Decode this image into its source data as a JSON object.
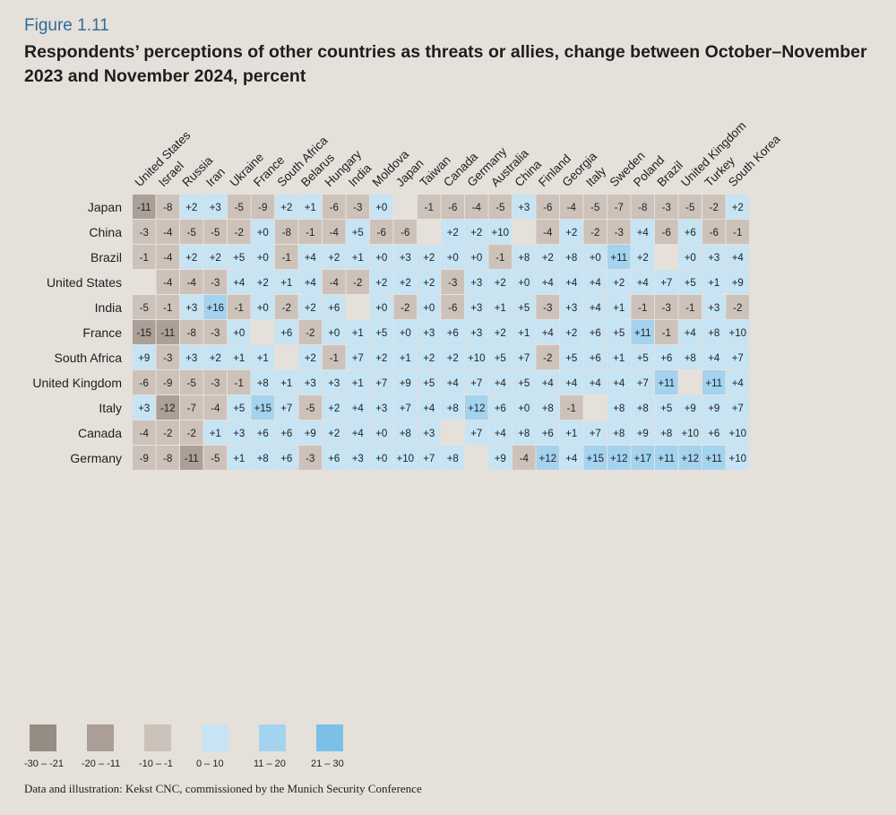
{
  "figure_label": "Figure 1.11",
  "title": "Respondents’ perceptions of other countries as threats or allies, change between October–November 2023 and November 2024, percent",
  "source": "Data and illustration: Kekst CNC, commissioned by the Munich Security Conference",
  "colors": {
    "background": "#e6e0db",
    "neg_strong": "#958c83",
    "neg_mid": "#ab9f97",
    "neg_light": "#cdc2ba",
    "pos_light": "#c6e4f4",
    "pos_mid": "#a3d3ef",
    "pos_strong": "#7cc0e8",
    "empty": "#e6e0db"
  },
  "legend": [
    {
      "label": "-30 – -21",
      "color": "#958c83"
    },
    {
      "label": "-20 – -11",
      "color": "#ab9f97"
    },
    {
      "label": "-10 – -1",
      "color": "#cdc2ba"
    },
    {
      "label": "0 – 10",
      "color": "#c6e4f4"
    },
    {
      "label": "11 – 20",
      "color": "#a3d3ef"
    },
    {
      "label": "21 – 30",
      "color": "#7cc0e8"
    }
  ],
  "chart_data": {
    "type": "heatmap",
    "rows": [
      "Japan",
      "China",
      "Brazil",
      "United States",
      "India",
      "France",
      "South Africa",
      "United Kingdom",
      "Italy",
      "Canada",
      "Germany"
    ],
    "columns": [
      "United States",
      "Israel",
      "Russia",
      "Iran",
      "Ukraine",
      "France",
      "South Africa",
      "Belarus",
      "Hungary",
      "India",
      "Moldova",
      "Japan",
      "Taiwan",
      "Canada",
      "Germany",
      "Australia",
      "China",
      "Finland",
      "Georgia",
      "Italy",
      "Sweden",
      "Poland",
      "Brazil",
      "United Kingdom",
      "Turkey",
      "South Korea"
    ],
    "values": [
      [
        -11,
        -8,
        2,
        3,
        -5,
        -9,
        2,
        1,
        -6,
        -3,
        0,
        null,
        -1,
        -6,
        -4,
        -5,
        3,
        -6,
        -4,
        -5,
        -7,
        -8,
        -3,
        -5,
        -2,
        2
      ],
      [
        -3,
        -4,
        -5,
        -5,
        -2,
        0,
        -8,
        -1,
        -4,
        5,
        -6,
        -6,
        null,
        2,
        2,
        10,
        null,
        -4,
        2,
        -2,
        -3,
        4,
        -6,
        6,
        -6,
        -1
      ],
      [
        -1,
        -4,
        2,
        2,
        5,
        0,
        -1,
        4,
        2,
        1,
        0,
        3,
        2,
        0,
        0,
        -1,
        8,
        2,
        8,
        0,
        11,
        2,
        null,
        0,
        3,
        4
      ],
      [
        null,
        -4,
        -4,
        -3,
        4,
        2,
        1,
        4,
        -4,
        -2,
        2,
        2,
        2,
        -3,
        3,
        2,
        0,
        4,
        4,
        4,
        2,
        4,
        7,
        5,
        1,
        9
      ],
      [
        -5,
        -1,
        3,
        16,
        -1,
        0,
        -2,
        2,
        6,
        null,
        0,
        -2,
        0,
        -6,
        3,
        1,
        5,
        -3,
        3,
        4,
        1,
        -1,
        -3,
        -1,
        3,
        -2
      ],
      [
        -15,
        -11,
        -8,
        -3,
        0,
        null,
        6,
        -2,
        0,
        1,
        5,
        0,
        3,
        6,
        3,
        2,
        1,
        4,
        2,
        6,
        5,
        11,
        -1,
        4,
        8,
        10
      ],
      [
        9,
        -3,
        3,
        2,
        1,
        1,
        null,
        2,
        -1,
        7,
        2,
        1,
        2,
        2,
        10,
        5,
        7,
        -2,
        5,
        6,
        1,
        5,
        6,
        8,
        4,
        7
      ],
      [
        -6,
        -9,
        -5,
        -3,
        -1,
        8,
        1,
        3,
        3,
        1,
        7,
        9,
        5,
        4,
        7,
        4,
        5,
        4,
        4,
        4,
        4,
        7,
        11,
        null,
        11,
        4
      ],
      [
        3,
        -12,
        -7,
        -4,
        5,
        15,
        7,
        -5,
        2,
        4,
        3,
        7,
        4,
        8,
        12,
        6,
        0,
        8,
        -1,
        null,
        8,
        8,
        5,
        9,
        9,
        7
      ],
      [
        -4,
        -2,
        -2,
        1,
        3,
        6,
        6,
        9,
        2,
        4,
        0,
        8,
        3,
        null,
        7,
        4,
        8,
        6,
        1,
        7,
        8,
        9,
        8,
        10,
        6,
        10
      ],
      [
        -9,
        -8,
        -11,
        -5,
        1,
        8,
        6,
        -3,
        6,
        3,
        0,
        10,
        7,
        8,
        null,
        9,
        -4,
        12,
        4,
        15,
        12,
        17,
        11,
        12,
        11,
        10
      ]
    ],
    "unit": "percent",
    "scale_bins": [
      "-30 – -21",
      "-20 – -11",
      "-10 – -1",
      "0 – 10",
      "11 – 20",
      "21 – 30"
    ]
  }
}
